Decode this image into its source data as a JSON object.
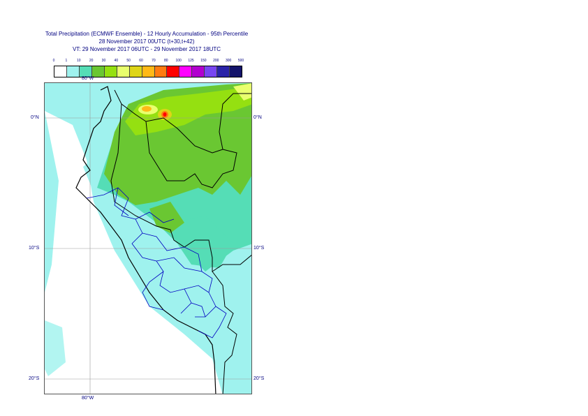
{
  "title": {
    "line1": "Total Precipitation (ECMWF Ensemble) - 12 Hourly Accumulation - 95th Percentile",
    "line2": "28 November 2017 00UTC (t+30,t+42)",
    "line3": "VT: 29 November 2017 06UTC - 29 November 2017 18UTC"
  },
  "legend": {
    "thresholds": [
      "0",
      "1",
      "10",
      "20",
      "30",
      "40",
      "50",
      "60",
      "70",
      "80",
      "100",
      "125",
      "150",
      "200",
      "300",
      "500"
    ],
    "colors": [
      "#ffffff",
      "#9ff2ee",
      "#55ddb6",
      "#6ac732",
      "#95e011",
      "#e9ff6d",
      "#ded517",
      "#ffb917",
      "#ff7b10",
      "#ff0000",
      "#ff00ff",
      "#b200cf",
      "#7845f1",
      "#2a23a8",
      "#14146b"
    ]
  },
  "map": {
    "lat_labels": {
      "n0": "0°N",
      "s10": "10°S",
      "s20": "20°S"
    },
    "lon_labels": {
      "w80": "80°W"
    }
  }
}
